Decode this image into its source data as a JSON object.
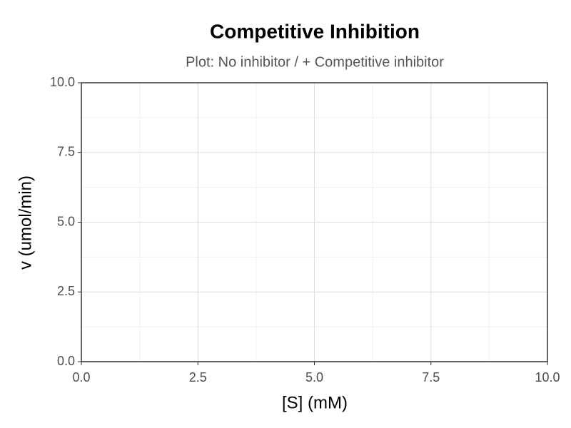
{
  "chart_data": {
    "type": "line",
    "title": "Competitive Inhibition",
    "subtitle": "Plot: No inhibitor / + Competitive inhibitor",
    "x_label": "[S] (mM)",
    "y_label": "v (umol/min)",
    "xlim": [
      0,
      10
    ],
    "ylim": [
      0,
      10
    ],
    "xticks": [
      {
        "value": 0,
        "label": "0.0"
      },
      2.5,
      {
        "value": 5,
        "label": "5.0"
      },
      7.5,
      {
        "value": 10,
        "label": "10.0"
      }
    ],
    "yticks": [
      {
        "value": 0,
        "label": "0.0"
      },
      2.5,
      {
        "value": 5,
        "label": "5.0"
      },
      7.5,
      {
        "value": 10,
        "label": "10.0"
      }
    ],
    "grid": true,
    "minor_grid": true
  }
}
